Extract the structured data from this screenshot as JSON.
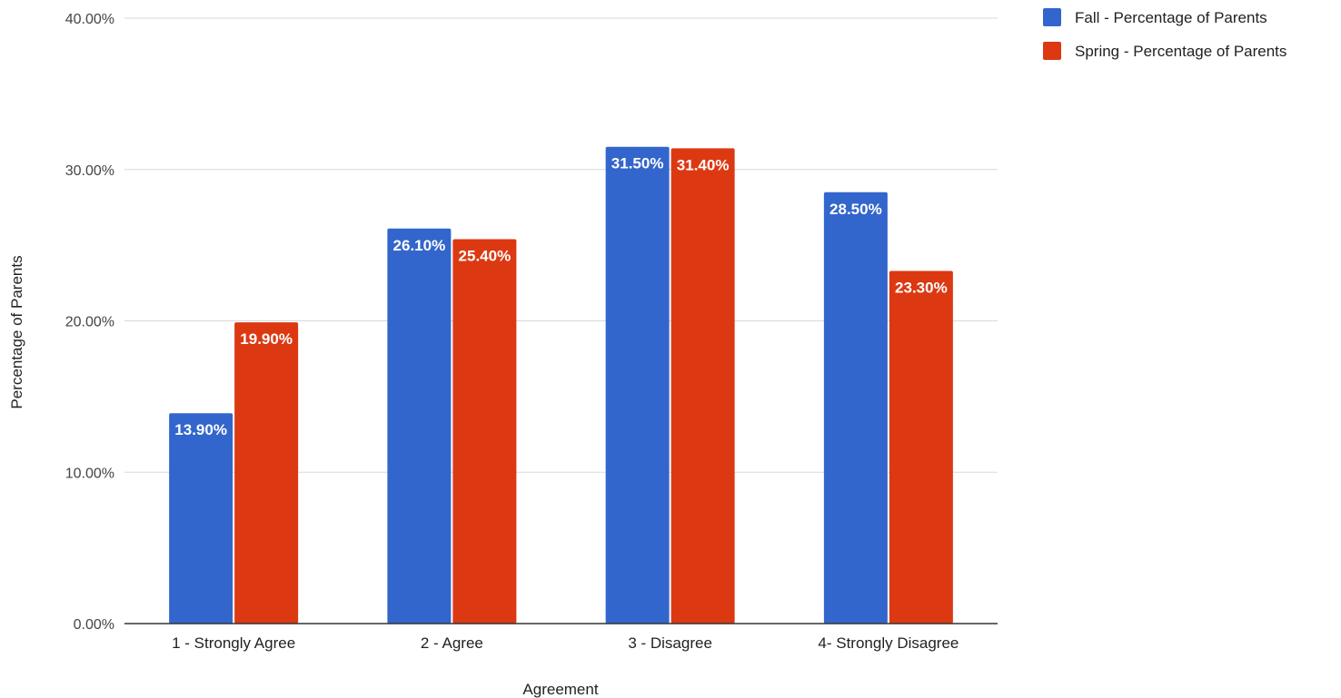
{
  "chart_data": {
    "type": "bar",
    "title": "",
    "xlabel": "Agreement",
    "ylabel": "Percentage of Parents",
    "categories": [
      "1 - Strongly Agree",
      "2 - Agree",
      "3 - Disagree",
      "4- Strongly Disagree"
    ],
    "series": [
      {
        "name": "Fall - Percentage of Parents",
        "color": "#3366cc",
        "values": [
          13.9,
          26.1,
          31.5,
          28.5
        ],
        "labels": [
          "13.90%",
          "26.10%",
          "31.50%",
          "28.50%"
        ]
      },
      {
        "name": "Spring - Percentage of Parents",
        "color": "#dc3912",
        "values": [
          19.9,
          25.4,
          31.4,
          23.3
        ],
        "labels": [
          "19.90%",
          "25.40%",
          "31.40%",
          "23.30%"
        ]
      }
    ],
    "ylim": [
      0,
      40
    ],
    "yticks": [
      0,
      10,
      20,
      30,
      40
    ],
    "ytick_labels": [
      "0.00%",
      "10.00%",
      "20.00%",
      "30.00%",
      "40.00%"
    ],
    "grid": true,
    "legend_position": "top-right"
  }
}
